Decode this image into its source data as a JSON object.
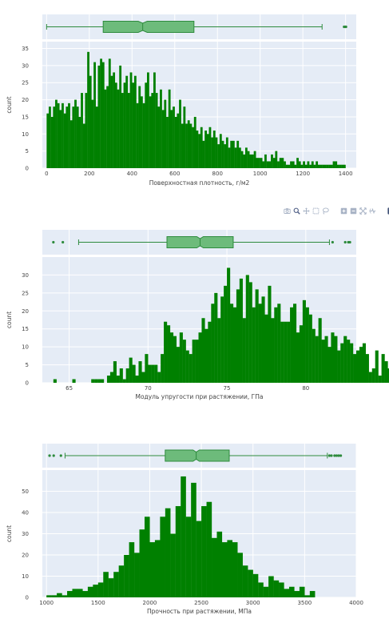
{
  "modebar": [
    {
      "name": "camera-icon",
      "label": "Download plot as a png",
      "active": false
    },
    {
      "name": "zoom-icon",
      "label": "Zoom",
      "active": true
    },
    {
      "name": "pan-icon",
      "label": "Pan",
      "active": false
    },
    {
      "name": "box-select-icon",
      "label": "Box Select",
      "active": false
    },
    {
      "name": "lasso-select-icon",
      "label": "Lasso Select",
      "active": false
    },
    {
      "name": "zoom-in-icon",
      "label": "Zoom in",
      "active": false
    },
    {
      "name": "zoom-out-icon",
      "label": "Zoom out",
      "active": false
    },
    {
      "name": "autoscale-icon",
      "label": "Autoscale",
      "active": false
    },
    {
      "name": "reset-axes-icon",
      "label": "Reset axes",
      "active": false
    },
    {
      "name": "plotly-logo-icon",
      "label": "Produced with Plotly",
      "active": false
    }
  ],
  "colors": {
    "bar": "#008000",
    "box_fill": "#6dbb7b",
    "box_line": "#2e8b3d",
    "plot_bg": "#e5ecf6",
    "grid": "#ffffff"
  },
  "chart_data": [
    {
      "type": "bar",
      "subtype": "histogram-with-box-marginal",
      "xlabel": "Поверхностная плотность, г/м2",
      "ylabel": "count",
      "xlim": [
        -20,
        1450
      ],
      "ylim": [
        0,
        37
      ],
      "xticks": [
        0,
        200,
        400,
        600,
        800,
        1000,
        1200,
        1400
      ],
      "yticks": [
        0,
        5,
        10,
        15,
        20,
        25,
        30,
        35
      ],
      "bin_start": 0,
      "bin_width": 10,
      "values": [
        16,
        18,
        15,
        18,
        20,
        19,
        17,
        19,
        16,
        18,
        19,
        14,
        18,
        20,
        18,
        15,
        22,
        13,
        22,
        34,
        27,
        20,
        31,
        18,
        30,
        32,
        31,
        23,
        24,
        32,
        27,
        28,
        25,
        23,
        30,
        22,
        25,
        27,
        22,
        28,
        25,
        27,
        19,
        24,
        21,
        19,
        25,
        28,
        21,
        22,
        28,
        22,
        18,
        23,
        17,
        20,
        15,
        23,
        17,
        18,
        15,
        16,
        20,
        13,
        18,
        13,
        14,
        13,
        12,
        15,
        11,
        10,
        12,
        8,
        11,
        10,
        12,
        9,
        11,
        9,
        7,
        10,
        8,
        7,
        9,
        6,
        8,
        8,
        6,
        8,
        6,
        5,
        4,
        6,
        5,
        4,
        4,
        5,
        3,
        3,
        3,
        2,
        4,
        2,
        2,
        4,
        3,
        5,
        2,
        3,
        3,
        2,
        1,
        1,
        2,
        2,
        1,
        3,
        2,
        1,
        2,
        1,
        2,
        1,
        2,
        1,
        2,
        1,
        1,
        1,
        1,
        1,
        1,
        1,
        2,
        2,
        1,
        1,
        1,
        1
      ],
      "box": {
        "lowerfence": 0,
        "q1": 265,
        "median": 450,
        "q3": 690,
        "upperfence": 1290,
        "outliers": [
          1393,
          1399,
          1402
        ]
      }
    },
    {
      "type": "bar",
      "subtype": "histogram-with-box-marginal",
      "xlabel": "Модуль упругости при растяжении, ГПа",
      "ylabel": "count",
      "xlim": [
        63.3,
        83.2
      ],
      "ylim": [
        0,
        35
      ],
      "xticks": [
        65,
        70,
        75,
        80
      ],
      "yticks": [
        0,
        5,
        10,
        15,
        20,
        25,
        30
      ],
      "bin_start": 64.0,
      "bin_width": 0.2,
      "values": [
        1,
        0,
        0,
        0,
        0,
        0,
        1,
        0,
        0,
        0,
        0,
        0,
        1,
        1,
        1,
        1,
        0,
        2,
        3,
        6,
        2,
        4,
        1,
        4,
        7,
        5,
        2,
        6,
        3,
        8,
        5,
        5,
        5,
        3,
        8,
        17,
        16,
        14,
        13,
        10,
        14,
        12,
        9,
        8,
        12,
        12,
        14,
        18,
        15,
        17,
        22,
        25,
        18,
        24,
        27,
        32,
        22,
        21,
        26,
        29,
        18,
        30,
        28,
        21,
        26,
        22,
        24,
        19,
        27,
        18,
        21,
        22,
        17,
        17,
        17,
        21,
        22,
        14,
        16,
        23,
        21,
        19,
        15,
        13,
        18,
        12,
        13,
        10,
        14,
        13,
        9,
        11,
        13,
        12,
        11,
        8,
        9,
        10,
        11,
        8,
        3,
        4,
        9,
        2,
        8,
        6,
        4,
        5,
        3,
        5,
        2,
        1,
        2,
        2,
        3,
        1,
        1,
        2,
        1,
        2,
        1,
        1,
        1,
        2,
        2,
        1,
        0,
        1,
        0,
        0,
        0,
        0,
        0,
        0,
        0,
        0,
        0,
        0,
        0,
        0,
        0,
        1,
        1,
        1,
        1,
        1,
        0,
        0,
        0,
        0,
        0,
        0,
        0,
        0,
        1,
        1,
        1
      ],
      "box": {
        "lowerfence": 65.6,
        "q1": 71.2,
        "median": 73.3,
        "q3": 75.4,
        "upperfence": 81.5,
        "outliers": [
          64.0,
          64.6,
          81.7,
          82.5,
          82.7,
          82.8
        ]
      }
    },
    {
      "type": "bar",
      "subtype": "histogram-with-box-marginal",
      "xlabel": "Прочность при растяжении, МПа",
      "ylabel": "count",
      "xlim": [
        960,
        4000
      ],
      "ylim": [
        0,
        60
      ],
      "xticks": [
        1000,
        1500,
        2000,
        2500,
        3000,
        3500,
        4000
      ],
      "yticks": [
        0,
        10,
        20,
        30,
        40,
        50
      ],
      "bin_start": 1000,
      "bin_width": 50,
      "values": [
        1,
        1,
        2,
        1,
        3,
        4,
        4,
        3,
        5,
        6,
        7,
        12,
        9,
        12,
        15,
        20,
        26,
        21,
        32,
        38,
        26,
        27,
        38,
        42,
        30,
        43,
        57,
        38,
        54,
        36,
        43,
        45,
        28,
        31,
        26,
        27,
        26,
        21,
        15,
        13,
        11,
        7,
        5,
        10,
        8,
        7,
        4,
        5,
        3,
        5,
        1,
        3
      ],
      "box": {
        "lowerfence": 1180,
        "q1": 2150,
        "median": 2450,
        "q3": 2770,
        "upperfence": 3720,
        "outliers": [
          1030,
          1070,
          1140,
          3740,
          3760,
          3790,
          3810,
          3830,
          3850
        ]
      }
    }
  ]
}
